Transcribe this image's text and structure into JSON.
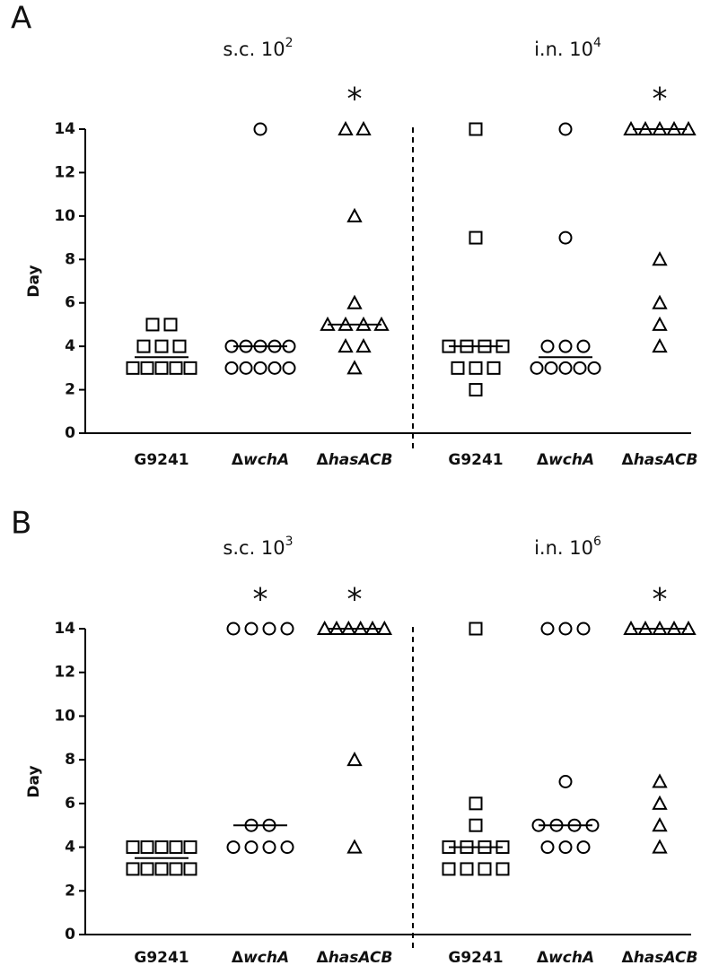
{
  "chart_data": [
    {
      "type": "dot",
      "panel": "A",
      "ylabel": "Day",
      "ylim": [
        0,
        14
      ],
      "yticks": [
        0,
        2,
        4,
        6,
        8,
        10,
        12,
        14
      ],
      "sections": [
        {
          "title": "s.c. 10",
          "title_exponent": "2",
          "groups": [
            {
              "label": [
                "G9241"
              ],
              "marker": "square",
              "values": [
                5,
                5,
                4,
                4,
                4,
                3,
                3,
                3,
                3,
                3
              ],
              "median": 3.5
            },
            {
              "label": [
                "Δ",
                "wchA"
              ],
              "marker": "circle",
              "values": [
                14,
                4,
                4,
                4,
                4,
                4,
                3,
                3,
                3,
                3,
                3
              ],
              "median": 4
            },
            {
              "label": [
                "Δ",
                "hasACB"
              ],
              "marker": "triangle",
              "values": [
                14,
                14,
                10,
                6,
                5,
                5,
                5,
                5,
                4,
                4,
                3
              ],
              "median": 5,
              "annotation": "*"
            }
          ]
        },
        {
          "title": "i.n. 10",
          "title_exponent": "4",
          "groups": [
            {
              "label": [
                "G9241"
              ],
              "marker": "square",
              "values": [
                14,
                9,
                4,
                4,
                4,
                4,
                3,
                3,
                3,
                2
              ],
              "median": 4
            },
            {
              "label": [
                "Δ",
                "wchA"
              ],
              "marker": "circle",
              "values": [
                14,
                9,
                4,
                4,
                4,
                3,
                3,
                3,
                3,
                3
              ],
              "median": 3.5
            },
            {
              "label": [
                "Δ",
                "hasACB"
              ],
              "marker": "triangle",
              "values": [
                14,
                14,
                14,
                14,
                14,
                8,
                6,
                5,
                4
              ],
              "median": 14,
              "annotation": "*"
            }
          ]
        }
      ]
    },
    {
      "type": "dot",
      "panel": "B",
      "ylabel": "Day",
      "ylim": [
        0,
        14
      ],
      "yticks": [
        0,
        2,
        4,
        6,
        8,
        10,
        12,
        14
      ],
      "sections": [
        {
          "title": "s.c. 10",
          "title_exponent": "3",
          "groups": [
            {
              "label": [
                "G9241"
              ],
              "marker": "square",
              "values": [
                4,
                4,
                4,
                4,
                4,
                3,
                3,
                3,
                3,
                3
              ],
              "median": 3.5
            },
            {
              "label": [
                "Δ",
                "wchA"
              ],
              "marker": "circle",
              "values": [
                14,
                14,
                14,
                14,
                5,
                5,
                4,
                4,
                4,
                4
              ],
              "median": 5,
              "annotation": "*"
            },
            {
              "label": [
                "Δ",
                "hasACB"
              ],
              "marker": "triangle",
              "values": [
                14,
                14,
                14,
                14,
                14,
                14,
                8,
                4
              ],
              "median": 14,
              "annotation": "*"
            }
          ]
        },
        {
          "title": "i.n. 10",
          "title_exponent": "6",
          "groups": [
            {
              "label": [
                "G9241"
              ],
              "marker": "square",
              "values": [
                14,
                6,
                5,
                4,
                4,
                4,
                4,
                3,
                3,
                3,
                3
              ],
              "median": 4
            },
            {
              "label": [
                "Δ",
                "wchA"
              ],
              "marker": "circle",
              "values": [
                14,
                14,
                14,
                7,
                5,
                5,
                5,
                5,
                4,
                4,
                4
              ],
              "median": 5
            },
            {
              "label": [
                "Δ",
                "hasACB"
              ],
              "marker": "triangle",
              "values": [
                14,
                14,
                14,
                14,
                14,
                7,
                6,
                5,
                4
              ],
              "median": 14,
              "annotation": "*"
            }
          ]
        }
      ]
    }
  ]
}
